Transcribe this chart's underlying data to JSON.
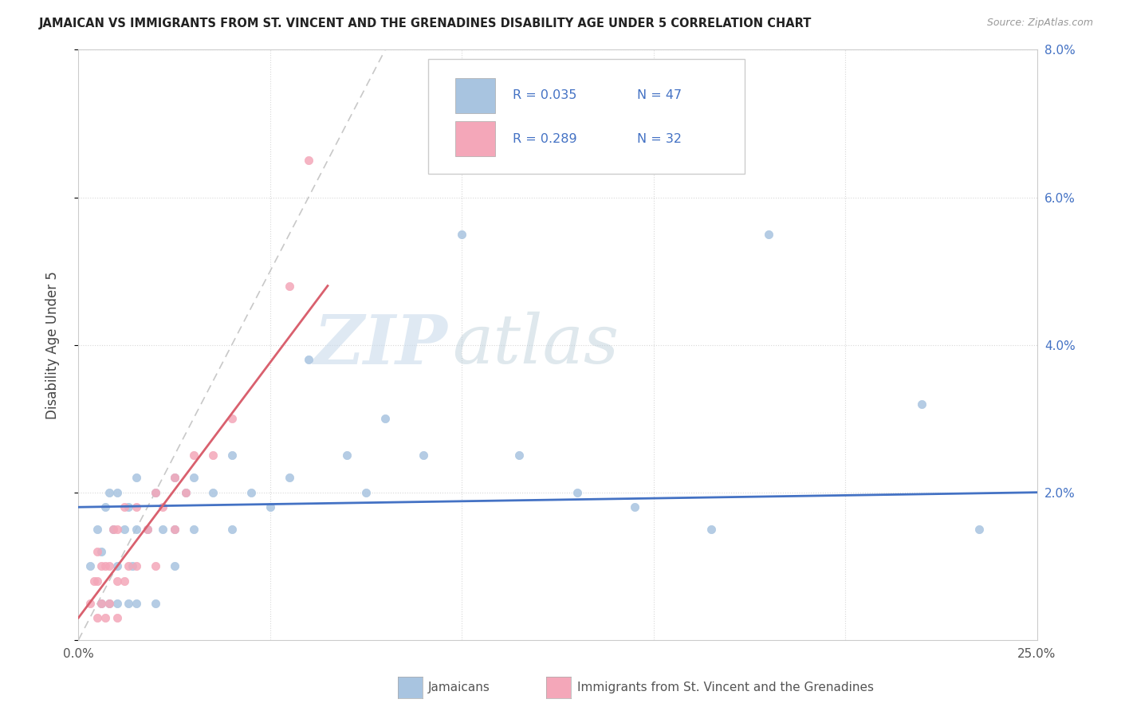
{
  "title": "JAMAICAN VS IMMIGRANTS FROM ST. VINCENT AND THE GRENADINES DISABILITY AGE UNDER 5 CORRELATION CHART",
  "source": "Source: ZipAtlas.com",
  "ylabel": "Disability Age Under 5",
  "xmin": 0.0,
  "xmax": 0.25,
  "ymin": 0.0,
  "ymax": 0.08,
  "xtick_positions": [
    0.0,
    0.05,
    0.1,
    0.15,
    0.2,
    0.25
  ],
  "ytick_positions": [
    0.0,
    0.02,
    0.04,
    0.06,
    0.08
  ],
  "xticklabels": [
    "0.0%",
    "",
    "",
    "",
    "",
    "25.0%"
  ],
  "yticklabels_right": [
    "",
    "2.0%",
    "4.0%",
    "6.0%",
    "8.0%"
  ],
  "legend_labels": [
    "Jamaicans",
    "Immigrants from St. Vincent and the Grenadines"
  ],
  "blue_color": "#a8c4e0",
  "pink_color": "#f4a7b9",
  "blue_line_color": "#4472c4",
  "pink_line_color": "#d9606e",
  "label_color": "#4472c4",
  "R_blue": 0.035,
  "N_blue": 47,
  "R_pink": 0.289,
  "N_pink": 32,
  "watermark_zip": "ZIP",
  "watermark_atlas": "atlas",
  "blue_scatter_x": [
    0.003,
    0.005,
    0.006,
    0.006,
    0.007,
    0.008,
    0.008,
    0.009,
    0.01,
    0.01,
    0.01,
    0.012,
    0.013,
    0.013,
    0.014,
    0.015,
    0.015,
    0.015,
    0.018,
    0.02,
    0.02,
    0.022,
    0.025,
    0.025,
    0.025,
    0.028,
    0.03,
    0.03,
    0.035,
    0.04,
    0.04,
    0.045,
    0.05,
    0.055,
    0.06,
    0.07,
    0.075,
    0.08,
    0.09,
    0.1,
    0.115,
    0.13,
    0.145,
    0.165,
    0.18,
    0.22,
    0.235
  ],
  "blue_scatter_y": [
    0.01,
    0.015,
    0.005,
    0.012,
    0.018,
    0.005,
    0.02,
    0.015,
    0.005,
    0.01,
    0.02,
    0.015,
    0.005,
    0.018,
    0.01,
    0.005,
    0.015,
    0.022,
    0.015,
    0.005,
    0.02,
    0.015,
    0.01,
    0.015,
    0.022,
    0.02,
    0.015,
    0.022,
    0.02,
    0.015,
    0.025,
    0.02,
    0.018,
    0.022,
    0.038,
    0.025,
    0.02,
    0.03,
    0.025,
    0.055,
    0.025,
    0.02,
    0.018,
    0.015,
    0.055,
    0.032,
    0.015
  ],
  "pink_scatter_x": [
    0.003,
    0.004,
    0.005,
    0.005,
    0.005,
    0.006,
    0.006,
    0.007,
    0.007,
    0.008,
    0.008,
    0.009,
    0.01,
    0.01,
    0.01,
    0.012,
    0.012,
    0.013,
    0.015,
    0.015,
    0.018,
    0.02,
    0.02,
    0.022,
    0.025,
    0.025,
    0.028,
    0.03,
    0.035,
    0.04,
    0.055,
    0.06
  ],
  "pink_scatter_y": [
    0.005,
    0.008,
    0.003,
    0.008,
    0.012,
    0.005,
    0.01,
    0.003,
    0.01,
    0.005,
    0.01,
    0.015,
    0.003,
    0.008,
    0.015,
    0.008,
    0.018,
    0.01,
    0.01,
    0.018,
    0.015,
    0.01,
    0.02,
    0.018,
    0.015,
    0.022,
    0.02,
    0.025,
    0.025,
    0.03,
    0.048,
    0.065
  ],
  "blue_line_x": [
    0.0,
    0.25
  ],
  "blue_line_y": [
    0.018,
    0.02
  ],
  "pink_line_x": [
    0.0,
    0.065
  ],
  "pink_line_y": [
    0.003,
    0.048
  ],
  "ref_line_x": [
    0.0,
    0.08
  ],
  "ref_line_y": [
    0.0,
    0.08
  ]
}
